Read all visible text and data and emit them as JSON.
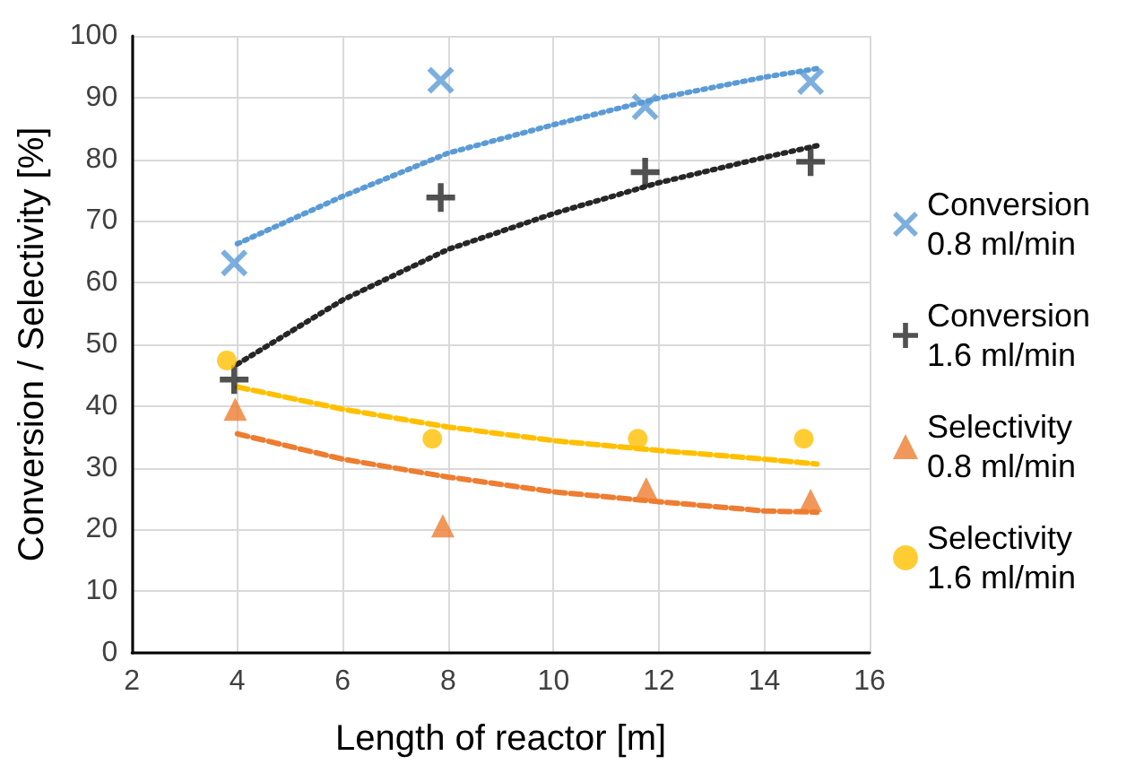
{
  "chart_data": {
    "type": "scatter",
    "xlabel": "Length of reactor [m]",
    "ylabel": "Conversion / Selectivity [%]",
    "xlim": [
      2,
      16
    ],
    "xticks": [
      2,
      4,
      6,
      8,
      10,
      12,
      14,
      16
    ],
    "ylim": [
      0,
      100
    ],
    "yticks": [
      0,
      10,
      20,
      30,
      40,
      50,
      60,
      70,
      80,
      90,
      100
    ],
    "grid": true,
    "legend": "right",
    "series": [
      {
        "name": "Conversion 0.8 ml/min",
        "marker": "cross",
        "color": "#5b9bd5",
        "x": [
          3.94,
          7.86,
          11.74,
          14.88
        ],
        "values": [
          63.2,
          92.8,
          88.5,
          92.6
        ]
      },
      {
        "name": "Conversion 1.6 ml/min",
        "marker": "plus",
        "color": "#262626",
        "x": [
          3.94,
          7.86,
          11.74,
          14.88
        ],
        "values": [
          44.3,
          73.8,
          77.9,
          79.6
        ]
      },
      {
        "name": "Selectivity 0.8 ml/min",
        "marker": "triangle",
        "color": "#ed7d31",
        "x": [
          3.96,
          7.9,
          11.76,
          14.88
        ],
        "values": [
          39.5,
          20.6,
          26.6,
          24.7
        ]
      },
      {
        "name": "Selectivity 1.6 ml/min",
        "marker": "circle",
        "color": "#ffc000",
        "x": [
          3.8,
          7.7,
          11.6,
          14.75
        ],
        "values": [
          47.4,
          34.7,
          34.7,
          34.7
        ]
      },
      {
        "type": "line",
        "marker": "none",
        "line_style": "dotted",
        "color": "#5b9bd5",
        "x": [
          4,
          6,
          8,
          10,
          12,
          14,
          15
        ],
        "values": [
          66.3,
          74,
          81,
          85.6,
          89.9,
          93.3,
          94.7
        ]
      },
      {
        "type": "line",
        "marker": "none",
        "line_style": "dotted",
        "color": "#262626",
        "x": [
          4,
          6,
          8,
          10,
          12,
          14,
          15
        ],
        "values": [
          46.8,
          57.2,
          65.4,
          71.2,
          76.2,
          80.3,
          82.2
        ]
      },
      {
        "type": "line",
        "marker": "none",
        "line_style": "dashed",
        "color": "#ed7d31",
        "x": [
          4,
          6,
          8,
          10,
          12,
          14,
          15
        ],
        "values": [
          35.5,
          31.4,
          28.5,
          26.1,
          24.5,
          23,
          22.8
        ]
      },
      {
        "type": "line",
        "marker": "none",
        "line_style": "dashed",
        "color": "#ffc000",
        "x": [
          4,
          6,
          8,
          10,
          12,
          14,
          15
        ],
        "values": [
          43.1,
          39.5,
          36.6,
          34.4,
          32.8,
          31.4,
          30.6
        ]
      }
    ]
  }
}
